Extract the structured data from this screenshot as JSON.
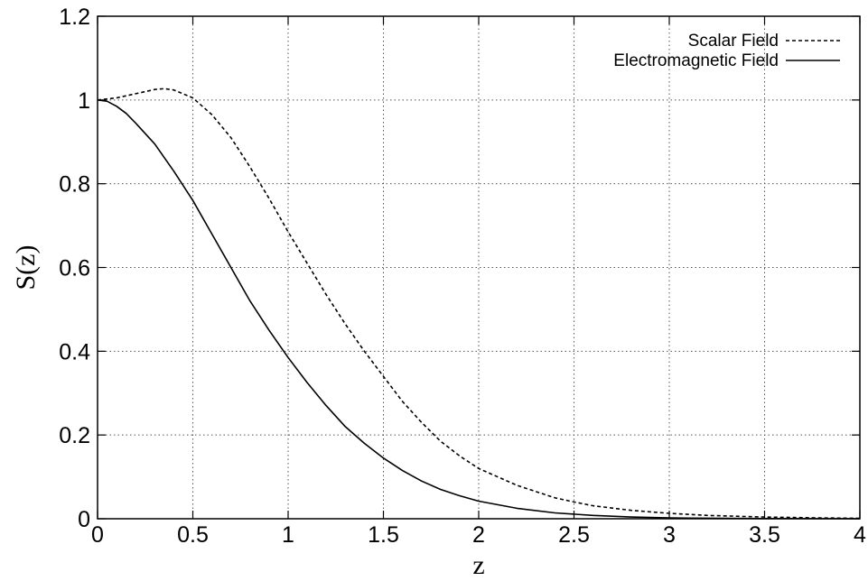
{
  "chart_data": {
    "type": "line",
    "xlabel": "z",
    "ylabel": "S(z)",
    "xlim": [
      0,
      4
    ],
    "ylim": [
      0,
      1.2
    ],
    "grid": true,
    "legend_position": "top-right",
    "x_ticks": [
      "0",
      "0.5",
      "1",
      "1.5",
      "2",
      "2.5",
      "3",
      "3.5",
      "4"
    ],
    "y_ticks": [
      "0",
      "0.2",
      "0.4",
      "0.6",
      "0.8",
      "1",
      "1.2"
    ],
    "series": [
      {
        "name": "Scalar Field",
        "style": "dashed",
        "color": "#000000",
        "x": [
          0,
          0.1,
          0.2,
          0.3,
          0.35,
          0.4,
          0.5,
          0.6,
          0.7,
          0.8,
          0.9,
          1.0,
          1.1,
          1.2,
          1.3,
          1.4,
          1.5,
          1.6,
          1.7,
          1.8,
          1.9,
          2.0,
          2.2,
          2.4,
          2.5,
          2.6,
          2.8,
          3.0,
          3.2,
          3.5,
          3.8,
          4.0
        ],
        "y": [
          1.0,
          1.005,
          1.015,
          1.025,
          1.027,
          1.024,
          1.005,
          0.965,
          0.91,
          0.84,
          0.765,
          0.685,
          0.61,
          0.535,
          0.465,
          0.4,
          0.34,
          0.28,
          0.23,
          0.185,
          0.15,
          0.12,
          0.08,
          0.05,
          0.04,
          0.031,
          0.02,
          0.013,
          0.008,
          0.004,
          0.002,
          0.001
        ]
      },
      {
        "name": "Electromagnetic Field",
        "style": "solid",
        "color": "#000000",
        "x": [
          0,
          0.05,
          0.1,
          0.15,
          0.2,
          0.3,
          0.4,
          0.5,
          0.6,
          0.7,
          0.8,
          0.9,
          1.0,
          1.1,
          1.2,
          1.3,
          1.4,
          1.5,
          1.6,
          1.7,
          1.8,
          1.9,
          2.0,
          2.2,
          2.4,
          2.6,
          2.8,
          3.0,
          3.5,
          4.0
        ],
        "y": [
          1.0,
          0.997,
          0.985,
          0.968,
          0.945,
          0.895,
          0.83,
          0.76,
          0.68,
          0.6,
          0.52,
          0.45,
          0.385,
          0.325,
          0.27,
          0.22,
          0.18,
          0.145,
          0.115,
          0.09,
          0.07,
          0.055,
          0.042,
          0.025,
          0.014,
          0.008,
          0.004,
          0.002,
          0.0005,
          0.0001
        ]
      }
    ]
  }
}
